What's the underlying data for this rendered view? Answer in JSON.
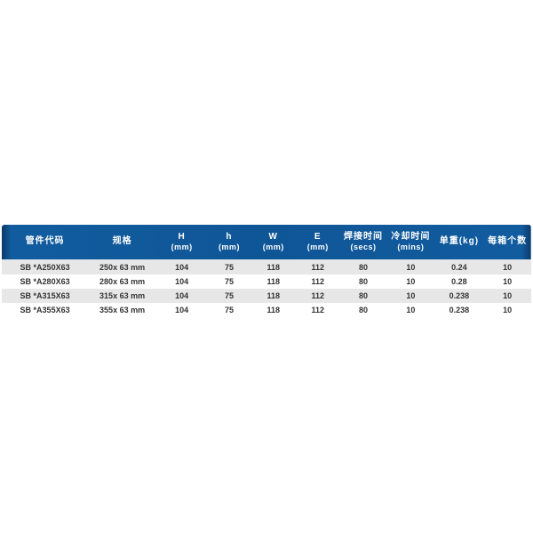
{
  "table": {
    "columns": [
      {
        "name": "part-code",
        "label": "管件代码",
        "sub": ""
      },
      {
        "name": "spec",
        "label": "规格",
        "sub": ""
      },
      {
        "name": "dim-h-upper",
        "label": "H",
        "sub": "(mm)"
      },
      {
        "name": "dim-h-lower",
        "label": "h",
        "sub": "(mm)"
      },
      {
        "name": "dim-w",
        "label": "W",
        "sub": "(mm)"
      },
      {
        "name": "dim-e",
        "label": "E",
        "sub": "(mm)"
      },
      {
        "name": "weld-time",
        "label": "焊接时间",
        "sub": "(secs)"
      },
      {
        "name": "cool-time",
        "label": "冷却时间",
        "sub": "(mins)"
      },
      {
        "name": "unit-weight",
        "label": "单重(kg)",
        "sub": ""
      },
      {
        "name": "qty-per-box",
        "label": "每箱个数",
        "sub": ""
      }
    ],
    "rows": [
      [
        "SB *A250X63",
        "250x 63 mm",
        "104",
        "75",
        "118",
        "112",
        "80",
        "10",
        "0.24",
        "10"
      ],
      [
        "SB *A280X63",
        "280x 63 mm",
        "104",
        "75",
        "118",
        "112",
        "80",
        "10",
        "0.28",
        "10"
      ],
      [
        "SB *A315X63",
        "315x 63 mm",
        "104",
        "75",
        "118",
        "112",
        "80",
        "10",
        "0.238",
        "10"
      ],
      [
        "SB *A355X63",
        "355x 63 mm",
        "104",
        "75",
        "118",
        "112",
        "80",
        "10",
        "0.238",
        "10"
      ]
    ],
    "colors": {
      "page_bg": "#ffffff",
      "header_bg": "#115c9f",
      "header_edge": "#0b3a6b",
      "header_text": "#ffffff",
      "row_alt_bg": "#e7e7e7",
      "row_bg": "#ffffff",
      "row_text": "#333333"
    }
  }
}
